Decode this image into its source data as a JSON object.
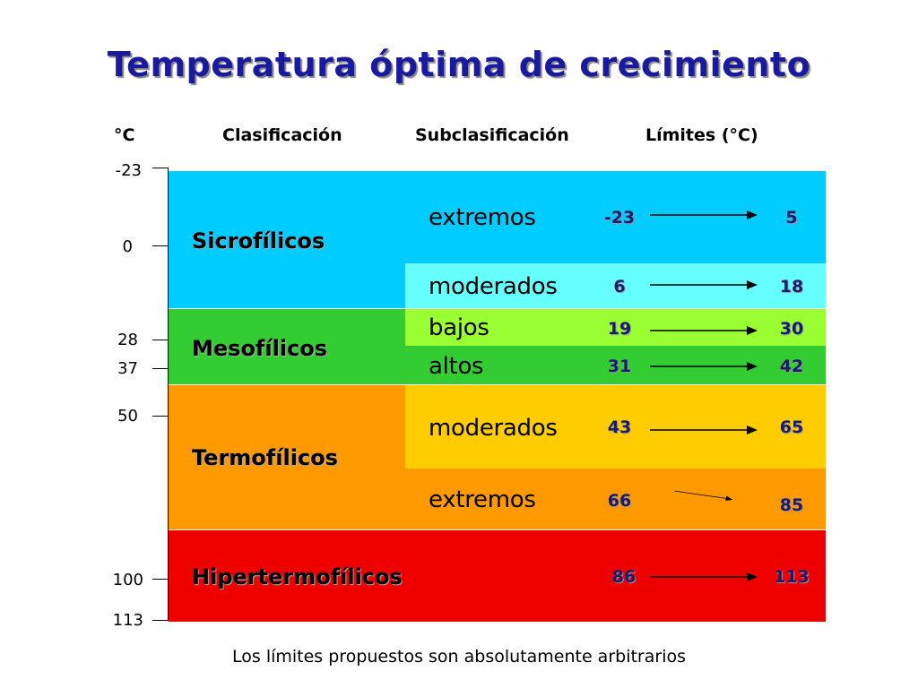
{
  "title": "Temperatura óptima de crecimiento",
  "headers": {
    "unit": "°C",
    "classification": "Clasificación",
    "subclassification": "Subclasificación",
    "limits": "Límites (°C)"
  },
  "axis_ticks": [
    "-23",
    "0",
    "28",
    "37",
    "50",
    "100",
    "113"
  ],
  "classes": [
    {
      "name": "Sicrofílicos",
      "color": "#00ccff"
    },
    {
      "name": "Mesofílicos",
      "color": "#33cc33"
    },
    {
      "name": "Termofílicos",
      "color": "#ff9900"
    },
    {
      "name": "Hipertermofílicos",
      "color": "#ee0000"
    }
  ],
  "subclasses": [
    {
      "name": "extremos",
      "low": "-23",
      "high": "5",
      "color": "#00ccff"
    },
    {
      "name": "moderados",
      "low": "6",
      "high": "18",
      "color": "#66ffff"
    },
    {
      "name": "bajos",
      "low": "19",
      "high": "30",
      "color": "#99ff33"
    },
    {
      "name": "altos",
      "low": "31",
      "high": "42",
      "color": "#33cc33"
    },
    {
      "name": "moderados",
      "low": "43",
      "high": "65",
      "color": "#ffcc00"
    },
    {
      "name": "extremos",
      "low": "66",
      "high": "85",
      "color": "#ff9900"
    },
    {
      "name": "",
      "low": "86",
      "high": "113",
      "color": "#ee0000"
    }
  ],
  "footnote": "Los límites propuestos son absolutamente arbitrarios"
}
